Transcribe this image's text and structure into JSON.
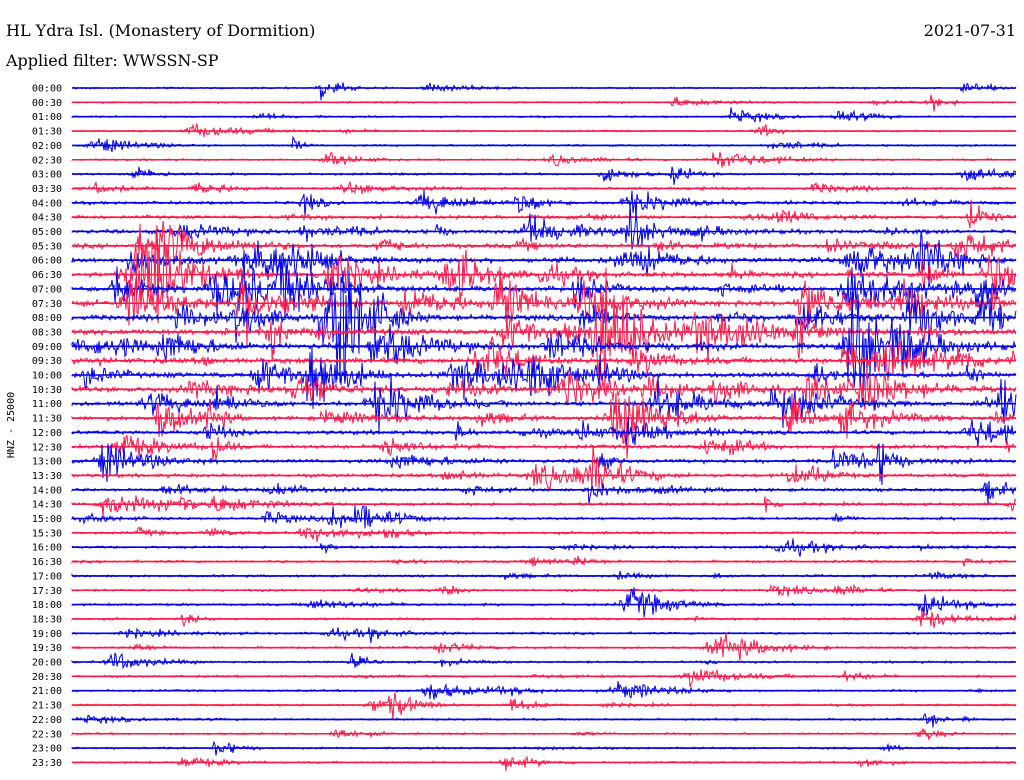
{
  "header": {
    "station": "HL Ydra Isl. (Monastery of Dormition)",
    "date": "2021-07-31",
    "filter": "Applied filter: WWSSN-SP"
  },
  "channel_label": "HNZ - 25000",
  "colors": {
    "trace_a": "#0000e6",
    "trace_b": "#ff1a4a",
    "background": "#ffffff"
  },
  "chart_data": {
    "type": "line",
    "title": "HL Ydra Isl. (Monastery of Dormition)",
    "ylabel": "HNZ - 25000",
    "xlabel": "",
    "grid": false,
    "legend": "none",
    "rows": [
      "00:00",
      "00:30",
      "01:00",
      "01:30",
      "02:00",
      "02:30",
      "03:00",
      "03:30",
      "04:00",
      "04:30",
      "05:00",
      "05:30",
      "06:00",
      "06:30",
      "07:00",
      "07:30",
      "08:00",
      "08:30",
      "09:00",
      "09:30",
      "10:00",
      "10:30",
      "11:00",
      "11:30",
      "12:00",
      "12:30",
      "13:00",
      "13:30",
      "14:00",
      "14:30",
      "15:00",
      "15:30",
      "16:00",
      "16:30",
      "17:00",
      "17:30",
      "18:00",
      "18:30",
      "19:00",
      "19:30",
      "20:00",
      "20:30",
      "21:00",
      "21:30",
      "22:00",
      "22:30",
      "23:00",
      "23:30"
    ],
    "row_colors": [
      "blue",
      "red"
    ],
    "activity_level": [
      0.05,
      0.08,
      0.06,
      0.07,
      0.1,
      0.12,
      0.18,
      0.25,
      0.35,
      0.4,
      0.55,
      0.7,
      0.85,
      0.85,
      0.9,
      0.95,
      1.0,
      1.0,
      0.95,
      0.9,
      0.9,
      0.8,
      0.75,
      0.65,
      0.6,
      0.55,
      0.5,
      0.45,
      0.4,
      0.35,
      0.25,
      0.25,
      0.22,
      0.22,
      0.2,
      0.2,
      0.22,
      0.2,
      0.18,
      0.18,
      0.16,
      0.15,
      0.15,
      0.15,
      0.14,
      0.13,
      0.12,
      0.12
    ]
  }
}
